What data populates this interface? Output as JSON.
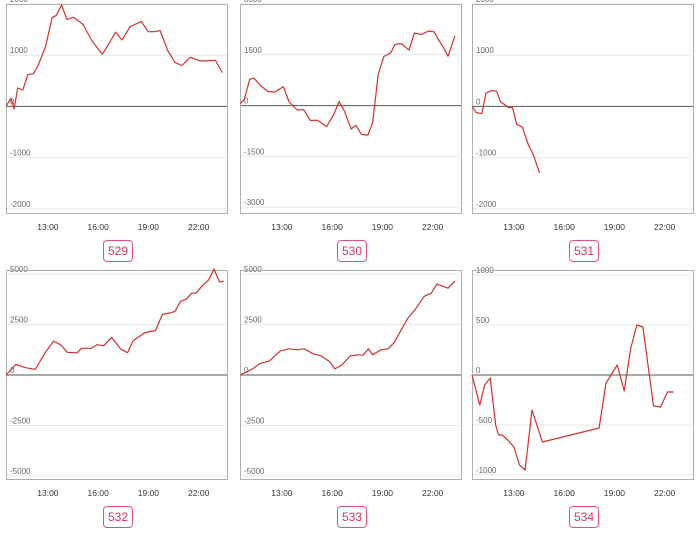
{
  "colors": {
    "line": "#d0312d",
    "badge": "#d0355f",
    "frame": "#b0b0b0",
    "grid": "#e9e9e9",
    "zero": "#555555",
    "tick": "#666666"
  },
  "chart_data": [
    {
      "type": "line",
      "id": "529",
      "xlim": [
        "10:30",
        "23:45"
      ],
      "xticks": [
        "13:00",
        "16:00",
        "19:00",
        "22:00"
      ],
      "ylim": [
        -2100,
        2000
      ],
      "yticks": [
        2000,
        1000,
        0,
        -1000,
        -2000
      ],
      "x": [
        "10:30",
        "10:48",
        "10:59",
        "11:12",
        "11:30",
        "11:48",
        "12:08",
        "12:25",
        "12:52",
        "13:15",
        "13:30",
        "13:49",
        "14:08",
        "14:32",
        "15:06",
        "15:38",
        "16:15",
        "16:38",
        "17:02",
        "17:25",
        "17:55",
        "18:35",
        "18:59",
        "19:21",
        "19:42",
        "20:10",
        "20:35",
        "21:00",
        "21:30",
        "22:05",
        "22:30",
        "23:00",
        "23:25"
      ],
      "values": [
        0,
        160,
        -50,
        360,
        320,
        620,
        640,
        800,
        1180,
        1730,
        1780,
        1980,
        1700,
        1740,
        1600,
        1280,
        1020,
        1220,
        1450,
        1300,
        1560,
        1660,
        1460,
        1460,
        1480,
        1080,
        860,
        800,
        960,
        890,
        890,
        900,
        660
      ]
    },
    {
      "type": "line",
      "id": "530",
      "xlim": [
        "10:30",
        "23:45"
      ],
      "xticks": [
        "13:00",
        "16:00",
        "19:00",
        "22:00"
      ],
      "ylim": [
        -3200,
        3000
      ],
      "yticks": [
        3000,
        1500,
        0,
        -1500,
        -3000
      ],
      "x": [
        "10:30",
        "10:45",
        "11:05",
        "11:20",
        "11:45",
        "12:10",
        "12:35",
        "13:05",
        "13:25",
        "13:55",
        "14:18",
        "14:42",
        "15:08",
        "15:40",
        "16:05",
        "16:25",
        "16:45",
        "17:08",
        "17:25",
        "17:45",
        "18:08",
        "18:25",
        "18:45",
        "19:05",
        "19:30",
        "19:45",
        "20:08",
        "20:35",
        "20:55",
        "21:20",
        "21:45",
        "22:05",
        "22:20",
        "22:40",
        "22:55",
        "23:20"
      ],
      "values": [
        60,
        180,
        780,
        810,
        580,
        420,
        400,
        560,
        120,
        -130,
        -120,
        -440,
        -430,
        -620,
        -280,
        120,
        -180,
        -690,
        -580,
        -850,
        -870,
        -510,
        920,
        1450,
        1560,
        1810,
        1830,
        1640,
        2140,
        2100,
        2200,
        2180,
        1950,
        1700,
        1460,
        2060
      ]
    },
    {
      "type": "line",
      "id": "531",
      "xlim": [
        "10:30",
        "23:45"
      ],
      "xticks": [
        "13:00",
        "16:00",
        "19:00",
        "22:00"
      ],
      "ylim": [
        -2100,
        2000
      ],
      "yticks": [
        2000,
        1000,
        0,
        -1000,
        -2000
      ],
      "x": [
        "10:30",
        "10:45",
        "11:05",
        "11:20",
        "11:40",
        "11:58",
        "12:12",
        "12:28",
        "12:40",
        "12:55",
        "13:10",
        "13:30",
        "13:52",
        "14:10",
        "14:32"
      ],
      "values": [
        0,
        -120,
        -140,
        260,
        310,
        300,
        90,
        30,
        -20,
        -20,
        -350,
        -400,
        -750,
        -950,
        -1300
      ]
    },
    {
      "type": "line",
      "id": "532",
      "xlim": [
        "10:30",
        "23:45"
      ],
      "xticks": [
        "13:00",
        "16:00",
        "19:00",
        "22:00"
      ],
      "ylim": [
        -5200,
        5200
      ],
      "yticks": [
        5000,
        2500,
        0,
        -2500,
        -5000
      ],
      "x": [
        "10:30",
        "11:05",
        "11:40",
        "12:15",
        "12:50",
        "13:20",
        "13:45",
        "14:10",
        "14:45",
        "15:00",
        "15:35",
        "15:55",
        "16:20",
        "16:48",
        "17:20",
        "17:45",
        "18:05",
        "18:45",
        "19:05",
        "19:25",
        "19:50",
        "20:10",
        "20:35",
        "20:55",
        "21:15",
        "21:35",
        "21:50",
        "22:12",
        "22:35",
        "22:55",
        "23:15",
        "23:30"
      ],
      "values": [
        0,
        520,
        360,
        280,
        1100,
        1680,
        1500,
        1120,
        1100,
        1320,
        1320,
        1500,
        1450,
        1860,
        1300,
        1100,
        1700,
        2080,
        2150,
        2200,
        3000,
        3050,
        3150,
        3650,
        3750,
        4050,
        4050,
        4400,
        4700,
        5250,
        4600,
        4650
      ]
    },
    {
      "type": "line",
      "id": "533",
      "xlim": [
        "10:30",
        "23:45"
      ],
      "xticks": [
        "13:00",
        "16:00",
        "19:00",
        "22:00"
      ],
      "ylim": [
        -5200,
        5200
      ],
      "yticks": [
        5000,
        2500,
        0,
        -2500,
        -5000
      ],
      "x": [
        "10:30",
        "11:15",
        "11:40",
        "12:15",
        "12:55",
        "13:25",
        "13:55",
        "14:20",
        "14:52",
        "15:20",
        "15:52",
        "16:10",
        "16:35",
        "17:05",
        "17:30",
        "17:50",
        "18:10",
        "18:25",
        "18:55",
        "19:20",
        "19:42",
        "20:10",
        "20:30",
        "20:55",
        "21:30",
        "21:55",
        "22:15",
        "22:40",
        "22:55",
        "23:20"
      ],
      "values": [
        0,
        300,
        560,
        700,
        1200,
        1300,
        1250,
        1300,
        1050,
        950,
        650,
        300,
        500,
        950,
        1000,
        980,
        1300,
        1000,
        1250,
        1300,
        1600,
        2300,
        2800,
        3200,
        3900,
        4050,
        4500,
        4380,
        4300,
        4650
      ]
    },
    {
      "type": "line",
      "id": "534",
      "xlim": [
        "10:30",
        "23:45"
      ],
      "xticks": [
        "13:00",
        "16:00",
        "19:00",
        "22:00"
      ],
      "ylim": [
        -1050,
        1050
      ],
      "yticks": [
        1000,
        500,
        0,
        -500,
        -1000
      ],
      "x": [
        "10:30",
        "10:58",
        "11:15",
        "11:35",
        "11:55",
        "12:05",
        "12:18",
        "12:38",
        "13:00",
        "13:20",
        "13:40",
        "14:05",
        "14:42",
        "18:05",
        "18:30",
        "19:10",
        "19:35",
        "19:58",
        "20:20",
        "20:42",
        "21:20",
        "21:45",
        "22:10",
        "22:32"
      ],
      "values": [
        0,
        -300,
        -100,
        -30,
        -500,
        -600,
        -600,
        -650,
        -720,
        -900,
        -950,
        -350,
        -670,
        -530,
        -80,
        100,
        -160,
        260,
        500,
        480,
        -310,
        -320,
        -170,
        -170
      ]
    }
  ]
}
